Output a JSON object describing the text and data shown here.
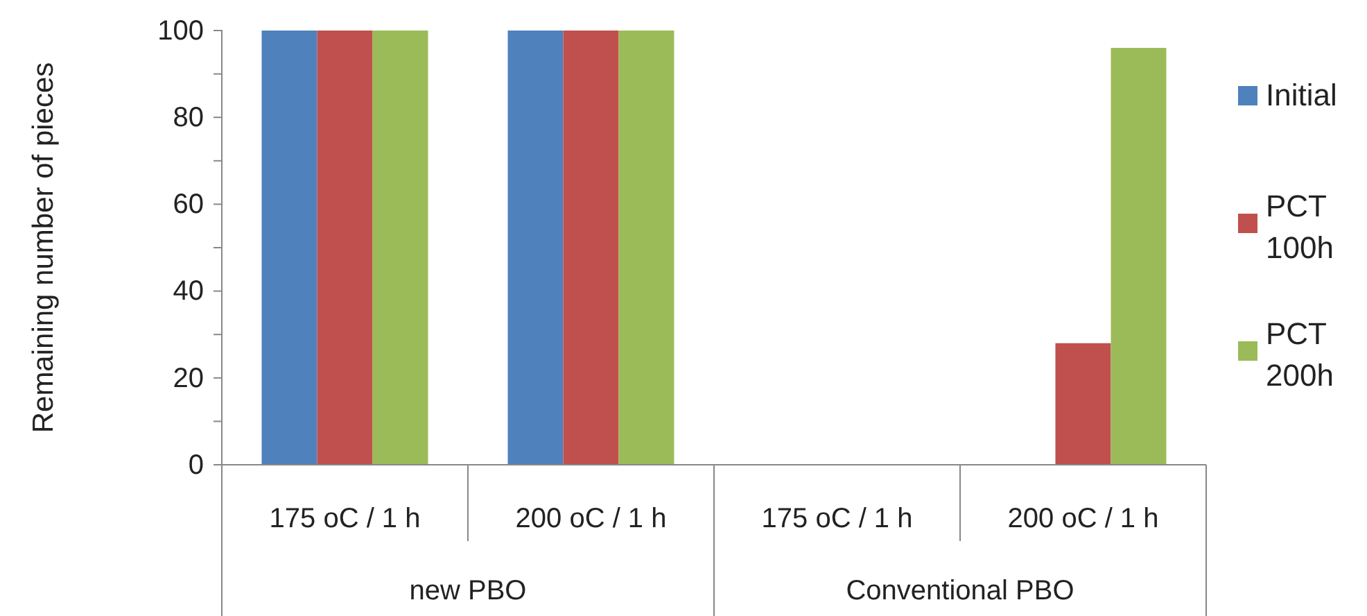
{
  "chart_data": {
    "type": "bar",
    "ylabel": "Remaining number of pieces",
    "categories": [
      "175 oC / 1 h",
      "200 oC / 1 h",
      "175 oC / 1 h",
      "200 oC / 1 h"
    ],
    "annotations": [
      "new PBO",
      "Conventional PBO"
    ],
    "series": [
      {
        "name": "Initial",
        "color": "#4f81bd",
        "values": [
          100,
          100,
          0,
          0
        ]
      },
      {
        "name": "PCT 100h",
        "color": "#c0504d",
        "values": [
          100,
          100,
          0,
          28
        ]
      },
      {
        "name": "PCT 200h",
        "color": "#9bbb59",
        "values": [
          100,
          100,
          0,
          96
        ]
      }
    ],
    "ylim": [
      0,
      100
    ],
    "yticks": [
      0,
      {
        "value": 10,
        "label": null
      },
      20,
      {
        "value": 30,
        "label": null
      },
      40,
      {
        "value": 50,
        "label": null
      },
      60,
      {
        "value": 70,
        "label": null
      },
      80,
      {
        "value": 90,
        "label": null
      },
      100
    ],
    "grid": false,
    "legend": "right"
  }
}
